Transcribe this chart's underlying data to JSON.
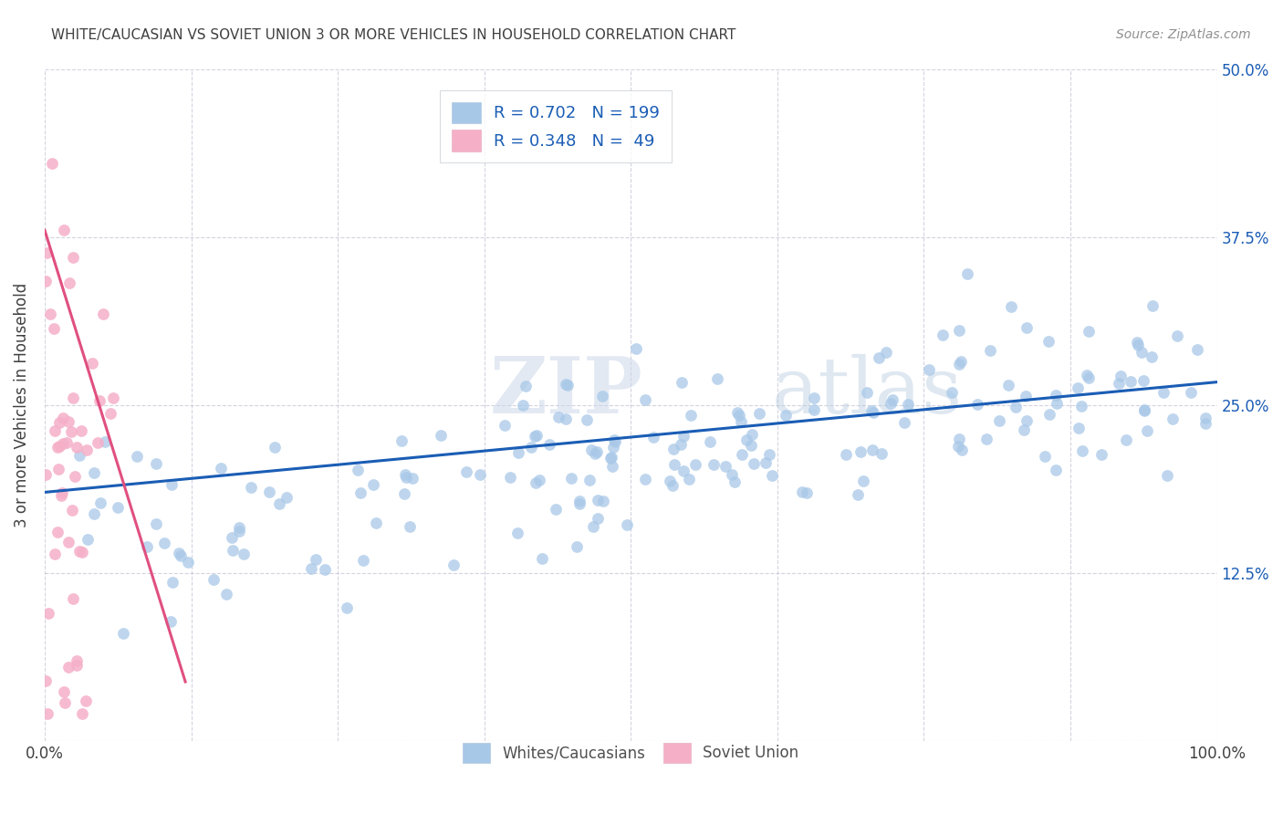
{
  "title": "WHITE/CAUCASIAN VS SOVIET UNION 3 OR MORE VEHICLES IN HOUSEHOLD CORRELATION CHART",
  "source": "Source: ZipAtlas.com",
  "ylabel": "3 or more Vehicles in Household",
  "x_ticks": [
    0.0,
    0.125,
    0.25,
    0.375,
    0.5,
    0.625,
    0.75,
    0.875,
    1.0
  ],
  "y_ticks": [
    0.0,
    0.125,
    0.25,
    0.375,
    0.5
  ],
  "xlim": [
    0.0,
    1.0
  ],
  "ylim": [
    0.0,
    0.5
  ],
  "watermark_part1": "ZIP",
  "watermark_part2": "atlas",
  "scatter_blue_color": "#a8c8e8",
  "scatter_pink_color": "#f5b0c8",
  "trend_blue_color": "#1a5db5",
  "trend_pink_color": "#e05080",
  "background_color": "#ffffff",
  "grid_color": "#c8c8d8",
  "title_color": "#404040",
  "source_color": "#909090",
  "blue_intercept": 0.185,
  "blue_slope": 0.082,
  "pink_intercept": 0.38,
  "pink_slope": -2.8,
  "seed": 42,
  "n_blue": 199,
  "n_pink": 49,
  "r_blue": 0.702,
  "r_pink": 0.348,
  "legend_R_color": "#1a5db5",
  "legend_N_color": "#1a5db5",
  "ytick_color": "#1a5db5"
}
